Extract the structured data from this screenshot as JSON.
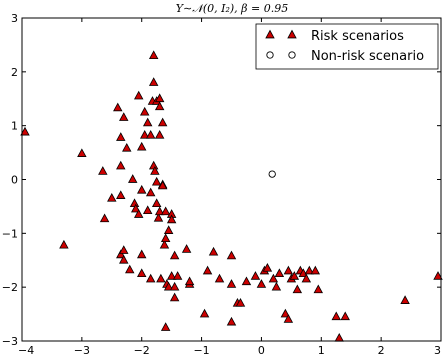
{
  "chart_data": {
    "type": "scatter",
    "title": "Y∼𝒩(0, I₂), β = 0.95",
    "xlabel": "",
    "ylabel": "",
    "xlim": [
      -4,
      3
    ],
    "ylim": [
      -3,
      3
    ],
    "xticks": [
      -4,
      -3,
      -2,
      -1,
      0,
      1,
      2,
      3
    ],
    "yticks": [
      -3,
      -2,
      -1,
      0,
      1,
      2,
      3
    ],
    "grid": false,
    "legend_position": "top-right",
    "series": [
      {
        "name": "Risk scenarios",
        "marker": "triangle",
        "color": "#cc0000",
        "edge_color": "#000000",
        "points": [
          [
            -3.95,
            0.88
          ],
          [
            -3.3,
            -1.22
          ],
          [
            -3.0,
            0.48
          ],
          [
            -2.65,
            0.15
          ],
          [
            -2.62,
            -0.73
          ],
          [
            -2.5,
            -0.35
          ],
          [
            -2.4,
            1.33
          ],
          [
            -2.35,
            0.78
          ],
          [
            -2.35,
            0.25
          ],
          [
            -2.35,
            -0.3
          ],
          [
            -2.35,
            -1.4
          ],
          [
            -2.3,
            -1.32
          ],
          [
            -2.3,
            -1.5
          ],
          [
            -2.3,
            1.15
          ],
          [
            -2.25,
            0.58
          ],
          [
            -2.2,
            -1.68
          ],
          [
            -2.15,
            0.0
          ],
          [
            -2.12,
            -0.45
          ],
          [
            -2.1,
            -0.55
          ],
          [
            -2.05,
            -0.65
          ],
          [
            -2.05,
            1.55
          ],
          [
            -2.0,
            0.6
          ],
          [
            -2.0,
            -0.2
          ],
          [
            -2.0,
            -1.4
          ],
          [
            -2.0,
            -1.75
          ],
          [
            -1.95,
            1.25
          ],
          [
            -1.95,
            0.82
          ],
          [
            -1.9,
            1.05
          ],
          [
            -1.9,
            -0.58
          ],
          [
            -1.85,
            0.82
          ],
          [
            -1.85,
            -0.25
          ],
          [
            -1.85,
            -1.85
          ],
          [
            -1.82,
            1.45
          ],
          [
            -1.8,
            2.3
          ],
          [
            -1.8,
            1.8
          ],
          [
            -1.8,
            0.25
          ],
          [
            -1.78,
            0.15
          ],
          [
            -1.75,
            1.45
          ],
          [
            -1.75,
            -0.05
          ],
          [
            -1.75,
            -0.45
          ],
          [
            -1.72,
            -0.72
          ],
          [
            -1.7,
            1.5
          ],
          [
            -1.7,
            1.35
          ],
          [
            -1.7,
            0.82
          ],
          [
            -1.7,
            -0.6
          ],
          [
            -1.68,
            -1.85
          ],
          [
            -1.65,
            1.05
          ],
          [
            -1.65,
            -0.1
          ],
          [
            -1.65,
            -0.12
          ],
          [
            -1.62,
            -1.22
          ],
          [
            -1.6,
            -1.1
          ],
          [
            -1.6,
            -0.6
          ],
          [
            -1.6,
            -2.75
          ],
          [
            -1.58,
            -1.95
          ],
          [
            -1.55,
            -2.0
          ],
          [
            -1.55,
            -0.95
          ],
          [
            -1.5,
            -0.65
          ],
          [
            -1.5,
            -0.75
          ],
          [
            -1.5,
            -1.8
          ],
          [
            -1.45,
            -2.0
          ],
          [
            -1.45,
            -2.2
          ],
          [
            -1.45,
            -1.42
          ],
          [
            -1.4,
            -1.8
          ],
          [
            -1.25,
            -1.3
          ],
          [
            -1.2,
            -1.95
          ],
          [
            -1.2,
            -1.9
          ],
          [
            -0.95,
            -2.5
          ],
          [
            -0.9,
            -1.7
          ],
          [
            -0.8,
            -1.35
          ],
          [
            -0.7,
            -1.85
          ],
          [
            -0.5,
            -1.42
          ],
          [
            -0.5,
            -2.65
          ],
          [
            -0.5,
            -1.95
          ],
          [
            -0.4,
            -2.3
          ],
          [
            -0.35,
            -2.3
          ],
          [
            -0.25,
            -1.9
          ],
          [
            -0.1,
            -1.8
          ],
          [
            0.0,
            -1.95
          ],
          [
            0.05,
            -1.7
          ],
          [
            0.1,
            -1.65
          ],
          [
            0.2,
            -1.85
          ],
          [
            0.25,
            -2.0
          ],
          [
            0.3,
            -1.75
          ],
          [
            0.4,
            -2.5
          ],
          [
            0.45,
            -2.6
          ],
          [
            0.45,
            -1.7
          ],
          [
            0.5,
            -1.85
          ],
          [
            0.55,
            -1.8
          ],
          [
            0.6,
            -2.05
          ],
          [
            0.65,
            -1.7
          ],
          [
            0.7,
            -1.75
          ],
          [
            0.75,
            -1.85
          ],
          [
            0.8,
            -1.7
          ],
          [
            0.9,
            -1.7
          ],
          [
            0.95,
            -2.05
          ],
          [
            1.25,
            -2.55
          ],
          [
            1.4,
            -2.55
          ],
          [
            2.4,
            -2.25
          ],
          [
            2.95,
            -1.8
          ],
          [
            1.3,
            -2.95
          ]
        ]
      },
      {
        "name": "Non-risk scenario",
        "marker": "circle",
        "color": "#ffffff",
        "edge_color": "#000000",
        "points": [
          [
            0.18,
            0.1
          ]
        ]
      }
    ]
  }
}
